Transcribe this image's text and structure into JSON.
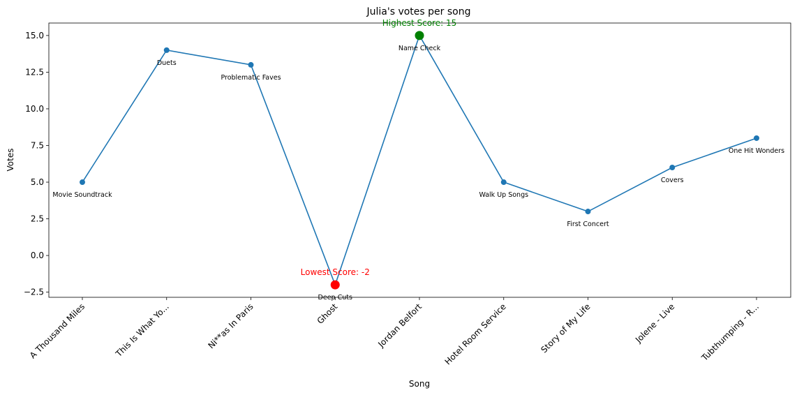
{
  "chart_data": {
    "type": "line",
    "title": "Julia's votes per song",
    "xlabel": "Song",
    "ylabel": "Votes",
    "ylim": [
      -2.85,
      15.85
    ],
    "yticks": [
      -2.5,
      0.0,
      2.5,
      5.0,
      7.5,
      10.0,
      12.5,
      15.0
    ],
    "ytick_labels": [
      "−2.5",
      "0.0",
      "2.5",
      "5.0",
      "7.5",
      "10.0",
      "12.5",
      "15.0"
    ],
    "grid": false,
    "line_color": "#1f77b4",
    "categories": [
      "A Thousand Miles",
      "This Is What Yo...",
      "Ni**as In Paris",
      "Ghost",
      "Jordan Belfort",
      "Hotel Room Service",
      "Story of My Life",
      "Jolene - Live",
      "Tubthumping - R..."
    ],
    "values": [
      5,
      14,
      13,
      -2,
      15,
      5,
      3,
      6,
      8
    ],
    "point_labels": [
      "Movie Soundtrack",
      "Duets",
      "Problematic Faves",
      "Deep Cuts",
      "Name Check",
      "Walk Up Songs",
      "First Concert",
      "Covers",
      "One Hit Wonders"
    ],
    "highlights": {
      "max": {
        "index": 4,
        "label": "Highest Score: 15",
        "color": "#008000"
      },
      "min": {
        "index": 3,
        "label": "Lowest Score: -2",
        "color": "#ff0000"
      }
    }
  }
}
